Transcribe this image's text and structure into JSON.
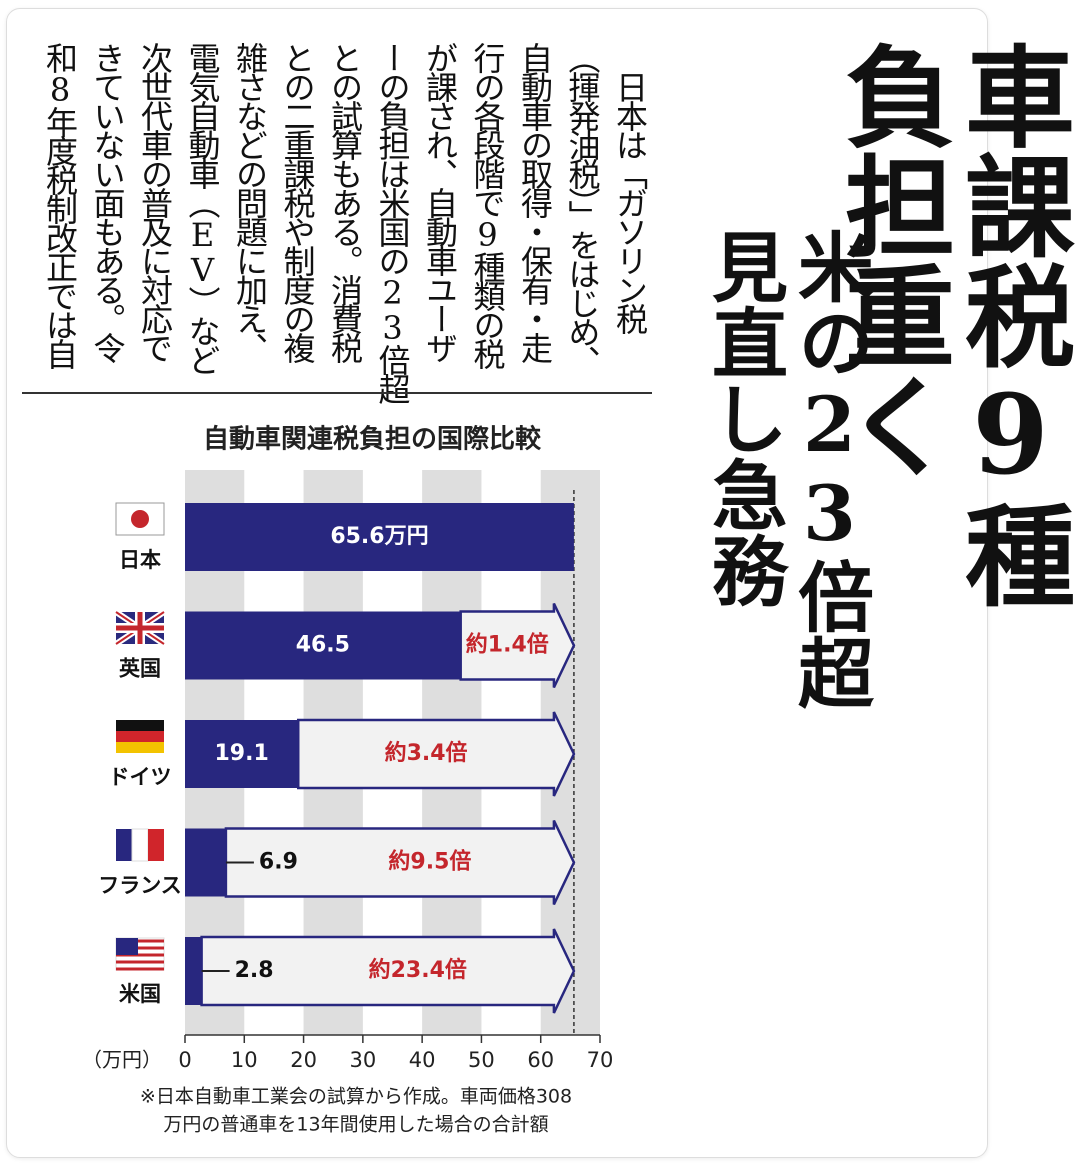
{
  "headline": {
    "main": [
      "車課税9種",
      "負担重く"
    ],
    "sub": [
      "米の23倍超",
      "見直し急務"
    ]
  },
  "article": {
    "lines": [
      "　日本は「ガソリン税",
      "（揮発油税）」をはじめ、",
      "自動車の取得・保有・走",
      "行の各段階で9種類の税",
      "が課され、自動車ユーザ",
      "ーの負担は米国の23倍超",
      "との試算もある。消費税",
      "との二重課税や制度の複",
      "雑さなどの問題に加え、",
      "電気自動車（EV）など",
      "次世代車の普及に対応で",
      "きていない面もある。令",
      "和8年度税制改正では自"
    ]
  },
  "chart_data": {
    "type": "hbar",
    "title": "自動車関連税負担の国際比較",
    "categories": [
      "日本",
      "英国",
      "ドイツ",
      "フランス",
      "米国"
    ],
    "values": [
      65.6,
      46.5,
      19.1,
      6.9,
      2.8
    ],
    "value_labels": [
      "65.6万円",
      "46.5",
      "19.1",
      "6.9",
      "2.8"
    ],
    "ratio_labels": [
      null,
      "約1.4倍",
      "約3.4倍",
      "約9.5倍",
      "約23.4倍"
    ],
    "color": "#28277f",
    "ratio_color": "#c4262c",
    "xlim": [
      0,
      70
    ],
    "xticks": [
      0,
      10,
      20,
      30,
      40,
      50,
      60,
      70
    ],
    "x_unit": "（万円）",
    "stripes": true,
    "notes": [
      "※日本自動車工業会の試算から作成。車両価格308",
      "万円の普通車を13年間使用した場合の合計額"
    ]
  }
}
